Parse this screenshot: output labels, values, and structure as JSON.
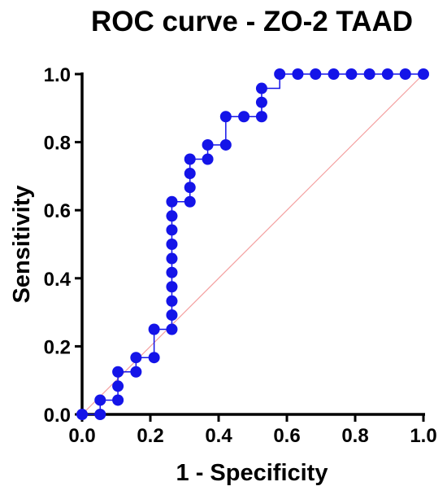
{
  "chart_data": {
    "type": "line",
    "title": "ROC curve - ZO-2 TAAD",
    "xlabel": "1 - Specificity",
    "ylabel": "Sensitivity",
    "xlim": [
      0.0,
      1.0
    ],
    "ylim": [
      0.0,
      1.0
    ],
    "x_ticks": [
      "0.0",
      "0.2",
      "0.4",
      "0.6",
      "0.8",
      "1.0"
    ],
    "y_ticks": [
      "0.0",
      "0.2",
      "0.4",
      "0.6",
      "0.8",
      "1.0"
    ],
    "grid": false,
    "legend": "none",
    "series": [
      {
        "color": "#1414e8",
        "step": true,
        "x": [
          0.0,
          0.053,
          0.053,
          0.105,
          0.105,
          0.105,
          0.158,
          0.158,
          0.211,
          0.211,
          0.263,
          0.263,
          0.263,
          0.263,
          0.263,
          0.263,
          0.263,
          0.263,
          0.263,
          0.263,
          0.316,
          0.316,
          0.316,
          0.316,
          0.368,
          0.368,
          0.421,
          0.421,
          0.474,
          0.526,
          0.526,
          0.526,
          0.579,
          0.632,
          0.684,
          0.737,
          0.789,
          0.842,
          0.895,
          0.947,
          1.0
        ],
        "y": [
          0.0,
          0.0,
          0.042,
          0.042,
          0.083,
          0.125,
          0.125,
          0.167,
          0.167,
          0.25,
          0.25,
          0.292,
          0.333,
          0.375,
          0.417,
          0.458,
          0.5,
          0.542,
          0.583,
          0.625,
          0.625,
          0.667,
          0.708,
          0.75,
          0.75,
          0.792,
          0.792,
          0.875,
          0.875,
          0.875,
          0.917,
          0.958,
          1.0,
          1.0,
          1.0,
          1.0,
          1.0,
          1.0,
          1.0,
          1.0,
          1.0
        ]
      }
    ],
    "reference_line": {
      "x": [
        0.0,
        1.0
      ],
      "y": [
        0.0,
        1.0
      ],
      "color": "#f4a0a0"
    }
  }
}
